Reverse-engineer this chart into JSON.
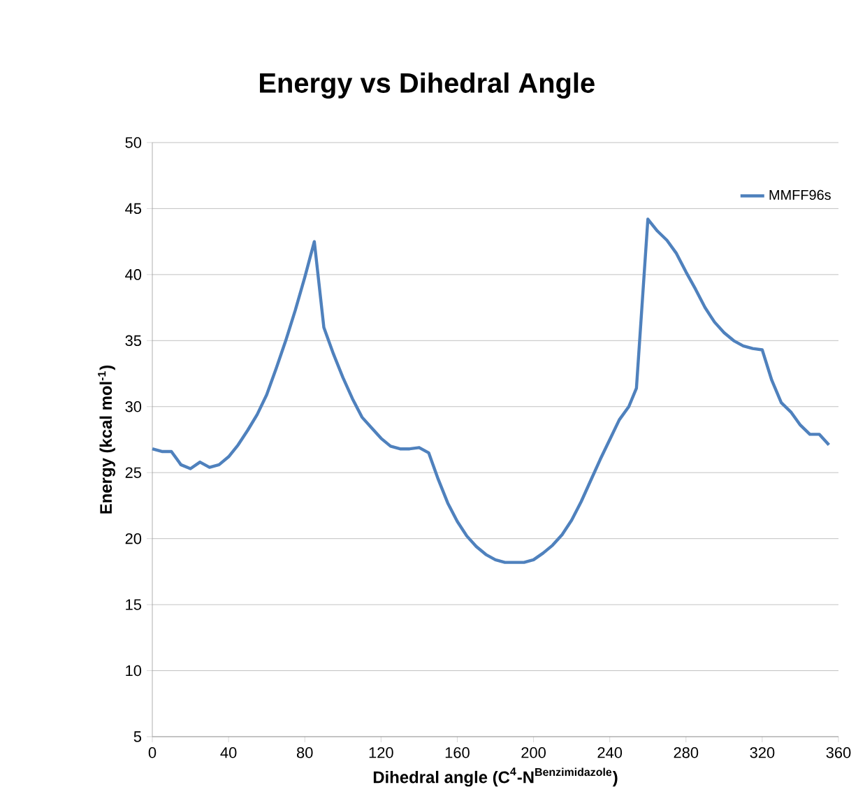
{
  "chart_data": {
    "type": "line",
    "title": "Energy vs Dihedral Angle",
    "xlabel": "\\text{Dihedral angle (C}^{\\text{4}}\\text{-N}^{\\text{Benzimidazole}}\\text{)}",
    "ylabel": "Energy (kcal mol$^{-1}$)",
    "xlim": [
      0,
      360
    ],
    "xticks": [
      0,
      40,
      80,
      120,
      160,
      200,
      240,
      280,
      320,
      360
    ],
    "ylim": [
      5,
      50
    ],
    "yticks": [
      5,
      10,
      15,
      20,
      25,
      30,
      35,
      40,
      45,
      50
    ],
    "grid": "y",
    "legend": "top right",
    "marker": "none",
    "line_style": "solid",
    "series": [
      {
        "name": "MMFF96s",
        "color": "#4f81bd",
        "x": [
          0,
          5,
          10,
          15,
          20,
          25,
          30,
          35,
          40,
          45,
          50,
          55,
          60,
          65,
          70,
          75,
          80,
          85,
          90,
          95,
          100,
          105,
          110,
          115,
          120,
          125,
          130,
          135,
          140,
          145,
          150,
          155,
          160,
          165,
          170,
          175,
          180,
          185,
          190,
          195,
          200,
          205,
          210,
          215,
          220,
          225,
          230,
          235,
          240,
          245,
          250,
          254,
          260,
          265,
          270,
          275,
          280,
          285,
          290,
          295,
          300,
          305,
          310,
          315,
          320,
          325,
          330,
          335,
          340,
          345,
          350,
          355
        ],
        "values": [
          26.8,
          26.6,
          26.6,
          25.6,
          25.3,
          25.8,
          25.4,
          25.6,
          26.2,
          27.1,
          28.2,
          29.4,
          30.9,
          32.9,
          35.0,
          37.3,
          39.8,
          42.5,
          36.0,
          34.0,
          32.2,
          30.6,
          29.2,
          28.4,
          27.6,
          27.0,
          26.8,
          26.8,
          26.9,
          26.5,
          24.5,
          22.7,
          21.3,
          20.2,
          19.4,
          18.8,
          18.4,
          18.2,
          18.2,
          18.2,
          18.4,
          18.9,
          19.5,
          20.3,
          21.4,
          22.8,
          24.4,
          26.0,
          27.5,
          29.0,
          30.0,
          31.4,
          44.2,
          43.3,
          42.6,
          41.6,
          40.2,
          38.9,
          37.5,
          36.4,
          35.6,
          35.0,
          34.6,
          34.4,
          34.3,
          32.0,
          30.3,
          29.6,
          28.6,
          27.9,
          27.9,
          27.1
        ]
      }
    ]
  }
}
